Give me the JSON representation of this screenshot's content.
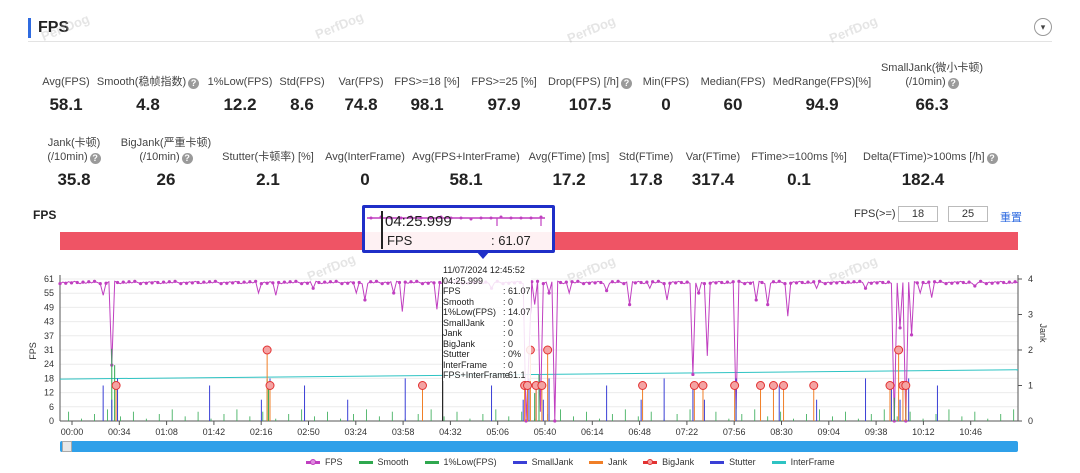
{
  "section": {
    "title": "FPS"
  },
  "metrics_row1": [
    {
      "label": "Avg(FPS)",
      "value": "58.1",
      "help": false
    },
    {
      "label": "Smooth(稳帧指数)",
      "value": "4.8",
      "help": true
    },
    {
      "label": "1%Low(FPS)",
      "value": "12.2",
      "help": false
    },
    {
      "label": "Std(FPS)",
      "value": "8.6",
      "help": false
    },
    {
      "label": "Var(FPS)",
      "value": "74.8",
      "help": false
    },
    {
      "label": "FPS>=18 [%]",
      "value": "98.1",
      "help": false
    },
    {
      "label": "FPS>=25 [%]",
      "value": "97.9",
      "help": false
    },
    {
      "label": "Drop(FPS) [/h]",
      "value": "107.5",
      "help": true
    },
    {
      "label": "Min(FPS)",
      "value": "0",
      "help": false
    },
    {
      "label": "Median(FPS)",
      "value": "60",
      "help": false
    },
    {
      "label": "MedRange(FPS)[%]",
      "value": "94.9",
      "help": false
    },
    {
      "label": "SmallJank(微小卡顿)",
      "label2": "(/10min)",
      "value": "66.3",
      "help": true
    }
  ],
  "metrics_row2": [
    {
      "label": "Jank(卡顿)",
      "label2": "(/10min)",
      "value": "35.8",
      "help": true
    },
    {
      "label": "BigJank(严重卡顿)",
      "label2": "(/10min)",
      "value": "26",
      "help": true
    },
    {
      "label": "Stutter(卡顿率) [%]",
      "value": "2.1",
      "help": false
    },
    {
      "label": "Avg(InterFrame)",
      "value": "0",
      "help": false
    },
    {
      "label": "Avg(FPS+InterFrame)",
      "value": "58.1",
      "help": false
    },
    {
      "label": "Avg(FTime) [ms]",
      "value": "17.2",
      "help": false
    },
    {
      "label": "Std(FTime)",
      "value": "17.8",
      "help": false
    },
    {
      "label": "Var(FTime)",
      "value": "317.4",
      "help": false
    },
    {
      "label": "FTime>=100ms [%]",
      "value": "0.1",
      "help": false
    },
    {
      "label": "Delta(FTime)>100ms [/h]",
      "value": "182.4",
      "help": true
    }
  ],
  "chart_header": {
    "label": "FPS",
    "threshold_label": "FPS(>=)",
    "threshold_low": "18",
    "threshold_high": "25",
    "reset": "重置"
  },
  "tooltip_big": {
    "time": "04:25.999",
    "label": "FPS",
    "value": ": 61.07"
  },
  "tooltip_small": {
    "date": "11/07/2024 12:45:52",
    "time": "04:25.999",
    "rows": [
      {
        "k": "FPS",
        "v": ": 61.07"
      },
      {
        "k": "Smooth",
        "v": ": 0"
      },
      {
        "k": "1%Low(FPS)",
        "v": ": 14.07"
      },
      {
        "k": "SmallJank",
        "v": ": 0"
      },
      {
        "k": "Jank",
        "v": ": 0"
      },
      {
        "k": "BigJank",
        "v": ": 0"
      },
      {
        "k": "Stutter",
        "v": ": 0%"
      },
      {
        "k": "InterFrame",
        "v": ": 0"
      },
      {
        "k": "FPS+InterFrame",
        "v": ": 61.1"
      }
    ]
  },
  "watermark_text": "PerfDog",
  "chart_data": {
    "type": "line",
    "ylabel": "FPS",
    "y2label": "Jank",
    "yticks": [
      "61",
      "55",
      "49",
      "43",
      "37",
      "31",
      "24",
      "18",
      "12",
      "6",
      "0"
    ],
    "y2ticks": [
      "4",
      "3",
      "2",
      "1",
      "0"
    ],
    "xticks": [
      "00:00",
      "00:34",
      "01:08",
      "01:42",
      "02:16",
      "02:50",
      "03:24",
      "03:58",
      "04:32",
      "05:06",
      "05:40",
      "06:14",
      "06:48",
      "07:22",
      "07:56",
      "08:30",
      "09:04",
      "09:38",
      "10:12",
      "10:46"
    ],
    "ylim": [
      0,
      61
    ],
    "y2lim": [
      0,
      4
    ],
    "legend": [
      {
        "name": "FPS",
        "color": "#c03fc0",
        "marker": true
      },
      {
        "name": "Smooth",
        "color": "#2fa84f",
        "marker": false
      },
      {
        "name": "1%Low(FPS)",
        "color": "#2fa84f",
        "marker": false
      },
      {
        "name": "SmallJank",
        "color": "#3a3fd6",
        "marker": false
      },
      {
        "name": "Jank",
        "color": "#f07f28",
        "marker": false
      },
      {
        "name": "BigJank",
        "color": "#e23232",
        "marker": true
      },
      {
        "name": "Stutter",
        "color": "#3a3fd6",
        "marker": false
      },
      {
        "name": "InterFrame",
        "color": "#2ec3c3",
        "marker": false
      }
    ],
    "fps_dips": [
      {
        "t": 30,
        "v": 54
      },
      {
        "t": 36,
        "v": 24
      },
      {
        "t": 39,
        "v": 0
      },
      {
        "t": 138,
        "v": 55
      },
      {
        "t": 145,
        "v": 0
      },
      {
        "t": 150,
        "v": 54
      },
      {
        "t": 176,
        "v": 57
      },
      {
        "t": 206,
        "v": 55
      },
      {
        "t": 212,
        "v": 52
      },
      {
        "t": 232,
        "v": 55
      },
      {
        "t": 238,
        "v": 47
      },
      {
        "t": 262,
        "v": 48
      },
      {
        "t": 267,
        "v": 55
      },
      {
        "t": 300,
        "v": 57
      },
      {
        "t": 324,
        "v": 0
      },
      {
        "t": 326,
        "v": 28
      },
      {
        "t": 330,
        "v": 50
      },
      {
        "t": 334,
        "v": 4
      },
      {
        "t": 337,
        "v": 46
      },
      {
        "t": 340,
        "v": 55
      },
      {
        "t": 344,
        "v": 0
      },
      {
        "t": 354,
        "v": 55
      },
      {
        "t": 380,
        "v": 56
      },
      {
        "t": 396,
        "v": 50
      },
      {
        "t": 410,
        "v": 57
      },
      {
        "t": 422,
        "v": 52
      },
      {
        "t": 440,
        "v": 20
      },
      {
        "t": 444,
        "v": 55
      },
      {
        "t": 450,
        "v": 28
      },
      {
        "t": 470,
        "v": 5
      },
      {
        "t": 475,
        "v": 47
      },
      {
        "t": 484,
        "v": 52
      },
      {
        "t": 492,
        "v": 50
      },
      {
        "t": 506,
        "v": 45
      },
      {
        "t": 526,
        "v": 57
      },
      {
        "t": 560,
        "v": 57
      },
      {
        "t": 580,
        "v": 0
      },
      {
        "t": 584,
        "v": 40
      },
      {
        "t": 588,
        "v": 0
      },
      {
        "t": 592,
        "v": 37
      },
      {
        "t": 598,
        "v": 55
      },
      {
        "t": 606,
        "v": 53
      },
      {
        "t": 636,
        "v": 58
      }
    ],
    "bigjank_points": [
      {
        "t": 39,
        "v": 1
      },
      {
        "t": 144,
        "v": 2
      },
      {
        "t": 146,
        "v": 1
      },
      {
        "t": 252,
        "v": 1
      },
      {
        "t": 323,
        "v": 1
      },
      {
        "t": 325,
        "v": 1
      },
      {
        "t": 327,
        "v": 2
      },
      {
        "t": 331,
        "v": 1
      },
      {
        "t": 335,
        "v": 1
      },
      {
        "t": 339,
        "v": 2
      },
      {
        "t": 405,
        "v": 1
      },
      {
        "t": 441,
        "v": 1
      },
      {
        "t": 447,
        "v": 1
      },
      {
        "t": 469,
        "v": 1
      },
      {
        "t": 487,
        "v": 1
      },
      {
        "t": 496,
        "v": 1
      },
      {
        "t": 503,
        "v": 1
      },
      {
        "t": 524,
        "v": 1
      },
      {
        "t": 577,
        "v": 1
      },
      {
        "t": 583,
        "v": 2
      },
      {
        "t": 586,
        "v": 1
      },
      {
        "t": 588,
        "v": 1
      }
    ],
    "interframe_start": 18,
    "interframe_end": 22,
    "cursor_t": 266
  }
}
